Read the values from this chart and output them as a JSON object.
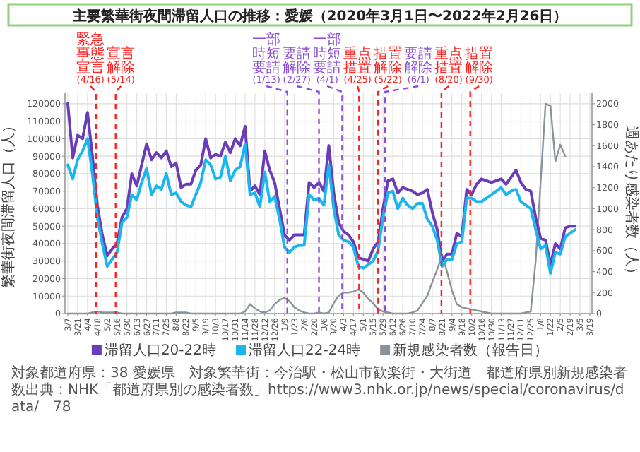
{
  "chart_data": {
    "type": "line",
    "title": "主要繁華街夜間滞留人口の推移：愛媛（2020年3月1日〜2022年2月26日）",
    "ylabel": "繁華街夜間滞留人口（人）",
    "y2label": "週あたり感染者数（人）",
    "x": [
      "2020-03-07",
      "2020-03-14",
      "2020-03-21",
      "2020-03-28",
      "2020-04-04",
      "2020-04-11",
      "2020-04-18",
      "2020-04-25",
      "2020-05-02",
      "2020-05-09",
      "2020-05-16",
      "2020-05-23",
      "2020-05-30",
      "2020-06-06",
      "2020-06-13",
      "2020-06-20",
      "2020-06-27",
      "2020-07-04",
      "2020-07-11",
      "2020-07-18",
      "2020-07-25",
      "2020-08-01",
      "2020-08-08",
      "2020-08-15",
      "2020-08-22",
      "2020-08-29",
      "2020-09-05",
      "2020-09-12",
      "2020-09-19",
      "2020-09-26",
      "2020-10-03",
      "2020-10-10",
      "2020-10-17",
      "2020-10-24",
      "2020-10-31",
      "2020-11-07",
      "2020-11-14",
      "2020-11-21",
      "2020-11-28",
      "2020-12-05",
      "2020-12-12",
      "2020-12-19",
      "2020-12-26",
      "2021-01-02",
      "2021-01-09",
      "2021-01-16",
      "2021-01-23",
      "2021-01-30",
      "2021-02-06",
      "2021-02-13",
      "2021-02-20",
      "2021-02-27",
      "2021-03-06",
      "2021-03-13",
      "2021-03-20",
      "2021-03-27",
      "2021-04-03",
      "2021-04-10",
      "2021-04-17",
      "2021-04-24",
      "2021-05-01",
      "2021-05-08",
      "2021-05-15",
      "2021-05-22",
      "2021-05-29",
      "2021-06-05",
      "2021-06-12",
      "2021-06-19",
      "2021-06-26",
      "2021-07-03",
      "2021-07-10",
      "2021-07-17",
      "2021-07-24",
      "2021-07-31",
      "2021-08-07",
      "2021-08-14",
      "2021-08-21",
      "2021-08-28",
      "2021-09-04",
      "2021-09-11",
      "2021-09-18",
      "2021-09-25",
      "2021-10-02",
      "2021-10-09",
      "2021-10-16",
      "2021-10-23",
      "2021-10-30",
      "2021-11-06",
      "2021-11-13",
      "2021-11-20",
      "2021-11-27",
      "2021-12-04",
      "2021-12-11",
      "2021-12-18",
      "2021-12-25",
      "2022-01-01",
      "2022-01-08",
      "2022-01-15",
      "2022-01-22",
      "2022-01-29",
      "2022-02-05",
      "2022-02-12",
      "2022-02-19",
      "2022-02-26"
    ],
    "series": [
      {
        "name": "滞留人口20-22時",
        "color": "#6a3cb8",
        "values": [
          120000,
          89000,
          102000,
          100000,
          115000,
          90000,
          62000,
          45000,
          33000,
          37000,
          40000,
          55000,
          60000,
          80000,
          73000,
          85000,
          97000,
          88000,
          92000,
          89000,
          93000,
          84000,
          86000,
          72000,
          74000,
          74000,
          82000,
          85000,
          100000,
          89000,
          91000,
          90000,
          98000,
          92000,
          100000,
          96000,
          107000,
          70000,
          73000,
          68000,
          93000,
          82000,
          75000,
          60000,
          45000,
          42000,
          45000,
          45000,
          45000,
          75000,
          72000,
          75000,
          70000,
          96000,
          69000,
          52000,
          47000,
          45000,
          41000,
          32000,
          31000,
          30000,
          37000,
          41000,
          60000,
          76000,
          77000,
          69000,
          72000,
          71000,
          70000,
          68000,
          69000,
          71000,
          58000,
          48000,
          30000,
          34000,
          34000,
          46000,
          44000,
          71000,
          68000,
          74000,
          77000,
          76000,
          75000,
          76000,
          77000,
          74000,
          78000,
          82000,
          75000,
          71000,
          70000,
          55000,
          43000,
          42000,
          28000,
          40000,
          37000,
          49000,
          50000,
          50000
        ]
      },
      {
        "name": "滞留人口22-24時",
        "color": "#1cb6ee",
        "values": [
          85000,
          77000,
          88000,
          93000,
          100000,
          80000,
          55000,
          40000,
          27000,
          31000,
          35000,
          52000,
          55000,
          68000,
          65000,
          75000,
          83000,
          68000,
          73000,
          71000,
          80000,
          68000,
          69000,
          64000,
          62000,
          61000,
          68000,
          75000,
          88000,
          85000,
          77000,
          78000,
          90000,
          76000,
          82000,
          84000,
          97000,
          68000,
          69000,
          61000,
          81000,
          64000,
          67000,
          54000,
          38000,
          35000,
          38000,
          39000,
          39000,
          68000,
          65000,
          66000,
          62000,
          85000,
          60000,
          45000,
          42000,
          41000,
          38000,
          27000,
          26000,
          28000,
          30000,
          36000,
          55000,
          69000,
          70000,
          60000,
          66000,
          62000,
          60000,
          63000,
          63000,
          54000,
          50000,
          42000,
          27000,
          31000,
          31000,
          40000,
          41000,
          66000,
          66000,
          64000,
          64000,
          66000,
          68000,
          70000,
          72000,
          68000,
          70000,
          71000,
          64000,
          62000,
          60000,
          48000,
          37000,
          39000,
          23000,
          35000,
          34000,
          44000,
          46000,
          48000
        ]
      },
      {
        "name": "新規感染者数（報告日）",
        "color": "#8a939c",
        "axis": "y2",
        "values": [
          0,
          0,
          0,
          0,
          0,
          10,
          20,
          10,
          10,
          10,
          10,
          0,
          0,
          0,
          0,
          0,
          0,
          0,
          0,
          0,
          0,
          0,
          10,
          10,
          10,
          0,
          0,
          0,
          0,
          0,
          0,
          0,
          0,
          0,
          0,
          0,
          20,
          90,
          50,
          20,
          10,
          30,
          90,
          130,
          150,
          120,
          60,
          30,
          10,
          0,
          0,
          10,
          0,
          10,
          100,
          170,
          200,
          200,
          210,
          230,
          200,
          140,
          100,
          40,
          20,
          10,
          0,
          0,
          0,
          0,
          10,
          30,
          100,
          170,
          300,
          420,
          560,
          400,
          220,
          90,
          60,
          50,
          40,
          30,
          20,
          10,
          0,
          0,
          0,
          0,
          0,
          0,
          0,
          10,
          20,
          500,
          1250,
          2000,
          1980,
          1450,
          1610,
          1500,
          null,
          null
        ]
      }
    ],
    "xlim": [
      "2020-03-03",
      "2022-03-22"
    ],
    "xticks": [
      {
        "value": "2020-03-07",
        "label": "3/7"
      },
      {
        "value": "2020-03-21",
        "label": "3/21"
      },
      {
        "value": "2020-04-04",
        "label": "4/4"
      },
      {
        "value": "2020-04-18",
        "label": "4/18"
      },
      {
        "value": "2020-05-02",
        "label": "5/2"
      },
      {
        "value": "2020-05-16",
        "label": "5/16"
      },
      {
        "value": "2020-05-30",
        "label": "5/30"
      },
      {
        "value": "2020-06-13",
        "label": "6/13"
      },
      {
        "value": "2020-06-27",
        "label": "6/27"
      },
      {
        "value": "2020-07-11",
        "label": "7/11"
      },
      {
        "value": "2020-07-25",
        "label": "7/25"
      },
      {
        "value": "2020-08-08",
        "label": "8/8"
      },
      {
        "value": "2020-08-22",
        "label": "8/22"
      },
      {
        "value": "2020-09-05",
        "label": "9/5"
      },
      {
        "value": "2020-09-19",
        "label": "9/19"
      },
      {
        "value": "2020-10-03",
        "label": "10/3"
      },
      {
        "value": "2020-10-17",
        "label": "10/17"
      },
      {
        "value": "2020-10-31",
        "label": "10/31"
      },
      {
        "value": "2020-11-14",
        "label": "11/14"
      },
      {
        "value": "2020-11-28",
        "label": "11/28"
      },
      {
        "value": "2020-12-12",
        "label": "12/12"
      },
      {
        "value": "2020-12-26",
        "label": "12/26"
      },
      {
        "value": "2021-01-09",
        "label": "1/9"
      },
      {
        "value": "2021-01-23",
        "label": "1/23"
      },
      {
        "value": "2021-02-06",
        "label": "2/6"
      },
      {
        "value": "2021-02-20",
        "label": "2/20"
      },
      {
        "value": "2021-03-06",
        "label": "3/6"
      },
      {
        "value": "2021-03-20",
        "label": "3/20"
      },
      {
        "value": "2021-04-03",
        "label": "4/3"
      },
      {
        "value": "2021-04-17",
        "label": "4/17"
      },
      {
        "value": "2021-05-01",
        "label": "5/1"
      },
      {
        "value": "2021-05-15",
        "label": "5/15"
      },
      {
        "value": "2021-05-29",
        "label": "5/29"
      },
      {
        "value": "2021-06-12",
        "label": "6/12"
      },
      {
        "value": "2021-06-26",
        "label": "6/26"
      },
      {
        "value": "2021-07-10",
        "label": "7/10"
      },
      {
        "value": "2021-07-24",
        "label": "7/24"
      },
      {
        "value": "2021-08-07",
        "label": "8/7"
      },
      {
        "value": "2021-08-21",
        "label": "8/21"
      },
      {
        "value": "2021-09-04",
        "label": "9/4"
      },
      {
        "value": "2021-09-18",
        "label": "9/18"
      },
      {
        "value": "2021-10-02",
        "label": "10/2"
      },
      {
        "value": "2021-10-16",
        "label": "10/16"
      },
      {
        "value": "2021-10-30",
        "label": "10/30"
      },
      {
        "value": "2021-11-13",
        "label": "11/13"
      },
      {
        "value": "2021-11-27",
        "label": "11/27"
      },
      {
        "value": "2021-12-11",
        "label": "12/11"
      },
      {
        "value": "2021-12-25",
        "label": "12/25"
      },
      {
        "value": "2022-01-08",
        "label": "1/8"
      },
      {
        "value": "2022-01-22",
        "label": "1/22"
      },
      {
        "value": "2022-02-05",
        "label": "2/5"
      },
      {
        "value": "2022-02-19",
        "label": "2/19"
      },
      {
        "value": "2022-03-05",
        "label": "3/5"
      },
      {
        "value": "2022-03-19",
        "label": "3/19"
      }
    ],
    "ylim": [
      0,
      126000
    ],
    "yticks": [
      0,
      10000,
      20000,
      30000,
      40000,
      50000,
      60000,
      70000,
      80000,
      90000,
      100000,
      110000,
      120000
    ],
    "y2lim": [
      0,
      2100
    ],
    "y2ticks": [
      0,
      200,
      400,
      600,
      800,
      1000,
      1200,
      1400,
      1600,
      1800,
      2000
    ],
    "ref_lines": [
      {
        "axis": "x",
        "value": "2020-04-16",
        "label": "緊急事態宣言(4/16)",
        "color": "#ff2020",
        "line_style": "dashed"
      },
      {
        "axis": "x",
        "value": "2020-05-14",
        "label": "宣言解除(5/14)",
        "color": "#ff2020",
        "line_style": "dashed"
      },
      {
        "axis": "x",
        "value": "2021-01-13",
        "label": "一部時短要請(1/13)",
        "color": "#8a4fd2",
        "line_style": "dashed"
      },
      {
        "axis": "x",
        "value": "2021-02-27",
        "label": "要請解除(2/27)",
        "color": "#8a4fd2",
        "line_style": "dashed"
      },
      {
        "axis": "x",
        "value": "2021-04-01",
        "label": "一部時短要請(4/1)",
        "color": "#8a4fd2",
        "line_style": "dashed"
      },
      {
        "axis": "x",
        "value": "2021-04-25",
        "label": "重点措置(4/25)",
        "color": "#ff2020",
        "line_style": "dashed"
      },
      {
        "axis": "x",
        "value": "2021-05-22",
        "label": "措置解除(5/22)",
        "color": "#ff2020",
        "line_style": "dashed"
      },
      {
        "axis": "x",
        "value": "2021-06-01",
        "label": "要請解除(6/1)",
        "color": "#8a4fd2",
        "line_style": "dashed"
      },
      {
        "axis": "x",
        "value": "2021-08-20",
        "label": "重点措置(8/20)",
        "color": "#ff2020",
        "line_style": "dashed"
      },
      {
        "axis": "x",
        "value": "2021-09-30",
        "label": "措置解除(9/30)",
        "color": "#ff2020",
        "line_style": "dashed"
      }
    ],
    "grid": true,
    "legend": "bottom",
    "annotations": [
      "対象都道府県：38 愛媛県",
      "対象繁華街：今治駅・松山市歓楽街・大街道",
      "都道府県別新規感染者数出典：NHK「都道府県別の感染者数」https://www3.nhk.or.jp/news/special/coronavirus/data/",
      "78"
    ]
  }
}
